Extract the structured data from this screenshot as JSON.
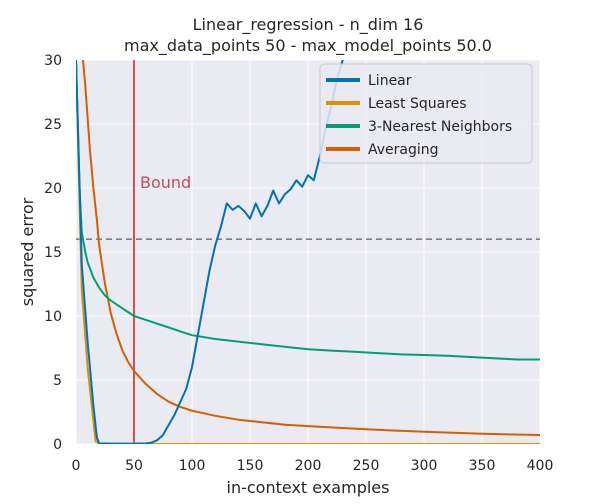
{
  "chart_data": {
    "type": "line",
    "title": [
      "Linear_regression - n_dim 16",
      "max_data_points 50 - max_model_points 50.0"
    ],
    "xlabel": "in-context examples",
    "ylabel": "squared error",
    "xlim": [
      0,
      400
    ],
    "ylim": [
      0,
      30
    ],
    "xticks": [
      0,
      50,
      100,
      150,
      200,
      250,
      300,
      350,
      400
    ],
    "yticks": [
      0,
      5,
      10,
      15,
      20,
      25,
      30
    ],
    "grid": true,
    "legend_position": "top-right",
    "background": "#EAEAF2",
    "reference_lines": [
      {
        "orientation": "horizontal",
        "value": 16,
        "style": "dashed",
        "color": "#808080"
      },
      {
        "orientation": "vertical",
        "value": 50,
        "style": "solid",
        "color": "#D62728",
        "label": "Bound",
        "label_color": "#C44E52"
      }
    ],
    "series": [
      {
        "name": "Linear",
        "color": "#0173B2",
        "x": [
          0,
          5,
          10,
          15,
          18,
          20,
          30,
          40,
          50,
          60,
          65,
          70,
          75,
          80,
          85,
          90,
          95,
          100,
          105,
          110,
          115,
          120,
          125,
          130,
          135,
          140,
          145,
          150,
          155,
          160,
          165,
          170,
          175,
          180,
          185,
          190,
          195,
          200,
          205,
          210,
          215,
          220,
          225,
          230
        ],
        "y": [
          30,
          14,
          8,
          3,
          0.5,
          0.05,
          0.03,
          0.03,
          0.03,
          0.05,
          0.1,
          0.3,
          0.7,
          1.5,
          2.3,
          3.3,
          4.3,
          6.0,
          8.5,
          11,
          13.5,
          15.5,
          17,
          18.8,
          18.3,
          18.6,
          18.2,
          17.6,
          18.8,
          17.8,
          18.6,
          19.8,
          18.8,
          19.5,
          19.9,
          20.6,
          20.1,
          21,
          20.6,
          22.4,
          24.5,
          26.4,
          28.5,
          30
        ]
      },
      {
        "name": "Least Squares",
        "color": "#DE8F05",
        "x": [
          0,
          5,
          10,
          15,
          17,
          20,
          50,
          100,
          150,
          200,
          250,
          300,
          350,
          400
        ],
        "y": [
          30,
          12,
          6,
          1.8,
          0.2,
          0.02,
          0.0,
          0.0,
          0.0,
          0.0,
          0.0,
          0.0,
          0.0,
          0.0
        ]
      },
      {
        "name": "3-Nearest Neighbors",
        "color": "#029E73",
        "x": [
          0,
          3,
          5,
          8,
          10,
          15,
          20,
          25,
          30,
          40,
          50,
          60,
          70,
          80,
          90,
          100,
          120,
          140,
          160,
          180,
          200,
          220,
          240,
          260,
          280,
          300,
          320,
          340,
          360,
          380,
          400
        ],
        "y": [
          30,
          20,
          16.5,
          15,
          14.2,
          13,
          12.2,
          11.6,
          11.2,
          10.6,
          10.0,
          9.7,
          9.4,
          9.1,
          8.8,
          8.5,
          8.2,
          8.0,
          7.8,
          7.6,
          7.4,
          7.3,
          7.2,
          7.1,
          7.0,
          6.95,
          6.9,
          6.8,
          6.7,
          6.6,
          6.6
        ]
      },
      {
        "name": "Averaging",
        "color": "#D55E00",
        "x": [
          6,
          8,
          10,
          12,
          15,
          18,
          20,
          25,
          30,
          35,
          40,
          45,
          50,
          60,
          70,
          80,
          90,
          100,
          120,
          140,
          160,
          180,
          200,
          250,
          300,
          350,
          400
        ],
        "y": [
          30,
          28,
          25.5,
          23,
          20,
          17.5,
          15.5,
          12.5,
          10.2,
          8.6,
          7.3,
          6.4,
          5.7,
          4.7,
          3.9,
          3.3,
          2.9,
          2.6,
          2.2,
          1.9,
          1.7,
          1.5,
          1.4,
          1.15,
          0.95,
          0.8,
          0.7
        ]
      }
    ]
  }
}
